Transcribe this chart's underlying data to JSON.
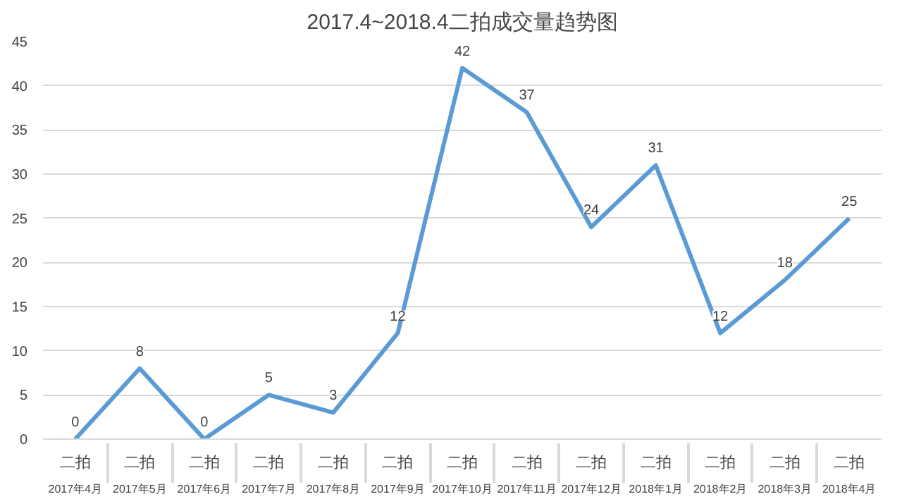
{
  "chart_data": {
    "type": "line",
    "title": "2017.4~2018.4二拍成交量趋势图",
    "categories": [
      "二拍\n2017年4月",
      "二拍\n2017年5月",
      "二拍\n2017年6月",
      "二拍\n2017年7月",
      "二拍\n2017年8月",
      "二拍\n2017年9月",
      "二拍\n2017年10月",
      "二拍\n2017年11月",
      "二拍\n2017年12月",
      "二拍\n2018年1月",
      "二拍\n2018年2月",
      "二拍\n2018年3月",
      "二拍\n2018年4月"
    ],
    "series": [
      {
        "color": "#5b9bd5",
        "values": [
          0,
          8,
          0,
          5,
          3,
          12,
          42,
          37,
          24,
          31,
          12,
          18,
          25
        ]
      }
    ],
    "ylim": [
      0,
      45
    ],
    "yticks": [
      0,
      5,
      10,
      15,
      20,
      25,
      30,
      35,
      40,
      45
    ],
    "grid": "y",
    "marker": "none",
    "line_style": "solid",
    "data_labels": true
  }
}
